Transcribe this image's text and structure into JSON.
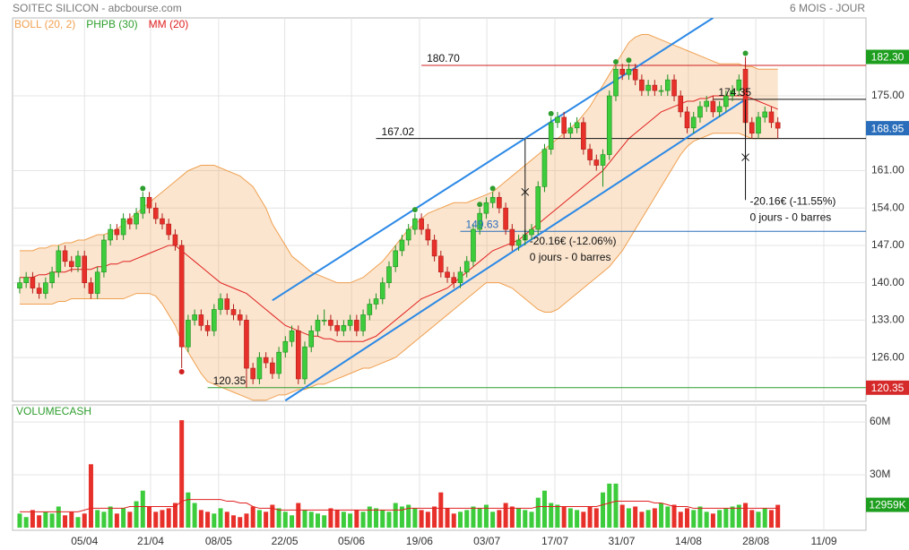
{
  "chart_data": {
    "type": "candlestick",
    "title": "SOITEC SILICON - abcbourse.com",
    "period": "6 MOIS - JOUR",
    "legend": [
      {
        "name": "BOLL (20, 2)",
        "color": "#f0a050"
      },
      {
        "name": "PHPB (30)",
        "color": "#2e9e2e"
      },
      {
        "name": "MM (20)",
        "color": "#e02020"
      }
    ],
    "volume_title": "VOLUMECASH",
    "xlim": [
      -1.1,
      130.6
    ],
    "xticks": [
      {
        "value": 10,
        "label": "05/04"
      },
      {
        "value": 20.2,
        "label": "21/04"
      },
      {
        "value": 30.7,
        "label": "08/05"
      },
      {
        "value": 40.9,
        "label": "22/05"
      },
      {
        "value": 51.2,
        "label": "05/06"
      },
      {
        "value": 61.7,
        "label": "19/06"
      },
      {
        "value": 72.1,
        "label": "03/07"
      },
      {
        "value": 82.6,
        "label": "17/07"
      },
      {
        "value": 92.9,
        "label": "31/07"
      },
      {
        "value": 103.2,
        "label": "14/08"
      },
      {
        "value": 113.6,
        "label": "28/08"
      },
      {
        "value": 124.1,
        "label": "11/09"
      }
    ],
    "ylim": [
      117.8,
      189.6
    ],
    "yticks": [
      {
        "value": 126,
        "label": "126.00"
      },
      {
        "value": 133,
        "label": "133.00"
      },
      {
        "value": 140,
        "label": "140.00"
      },
      {
        "value": 147,
        "label": "147.00"
      },
      {
        "value": 154,
        "label": "154.00"
      },
      {
        "value": 161,
        "label": "161.00"
      },
      {
        "value": 175,
        "label": "175.00"
      }
    ],
    "grid": true,
    "ohlc": [
      [
        139,
        141,
        138,
        140
      ],
      [
        140,
        142,
        139,
        141
      ],
      [
        141,
        142,
        138,
        139
      ],
      [
        139,
        140,
        137,
        138
      ],
      [
        138,
        141,
        137,
        140
      ],
      [
        140,
        143,
        139,
        142
      ],
      [
        142,
        147,
        141,
        146
      ],
      [
        146,
        147,
        143,
        144
      ],
      [
        144,
        145,
        142,
        143
      ],
      [
        143,
        146,
        142,
        145
      ],
      [
        145,
        146,
        139,
        140
      ],
      [
        140,
        141,
        137,
        138
      ],
      [
        138,
        143,
        137,
        142
      ],
      [
        142,
        149,
        141,
        148
      ],
      [
        148,
        151,
        147,
        150
      ],
      [
        150,
        151,
        148,
        149
      ],
      [
        149,
        153,
        148,
        152
      ],
      [
        152,
        153,
        150,
        151
      ],
      [
        151,
        154,
        150,
        153
      ],
      [
        153,
        157,
        152,
        156
      ],
      [
        156,
        157,
        153,
        154
      ],
      [
        154,
        155,
        151,
        152
      ],
      [
        152,
        153,
        150,
        151
      ],
      [
        151,
        152,
        148,
        149
      ],
      [
        149,
        150,
        146,
        147
      ],
      [
        147,
        148,
        124,
        128
      ],
      [
        128,
        134,
        127,
        133
      ],
      [
        133,
        135,
        132,
        134
      ],
      [
        134,
        135,
        131,
        132
      ],
      [
        132,
        133,
        130,
        131
      ],
      [
        131,
        136,
        130,
        135
      ],
      [
        135,
        138,
        134,
        137
      ],
      [
        137,
        138,
        134,
        135
      ],
      [
        135,
        136,
        133,
        134
      ],
      [
        134,
        135,
        132,
        133
      ],
      [
        133,
        134,
        120.35,
        124
      ],
      [
        124,
        125,
        121,
        122
      ],
      [
        122,
        127,
        121,
        126
      ],
      [
        126,
        127,
        124,
        125
      ],
      [
        125,
        126,
        122,
        123
      ],
      [
        123,
        128,
        122,
        127
      ],
      [
        127,
        130,
        126,
        129
      ],
      [
        129,
        132,
        128,
        131
      ],
      [
        131,
        132,
        121,
        122
      ],
      [
        122,
        129,
        121,
        128
      ],
      [
        128,
        132,
        127,
        131
      ],
      [
        131,
        134,
        130,
        133
      ],
      [
        133,
        135,
        132,
        133
      ],
      [
        133,
        134,
        131,
        132
      ],
      [
        132,
        133,
        130,
        131
      ],
      [
        131,
        133,
        130,
        132
      ],
      [
        132,
        134,
        131,
        133
      ],
      [
        133,
        134,
        130,
        131
      ],
      [
        131,
        135,
        130,
        134
      ],
      [
        134,
        137,
        133,
        136
      ],
      [
        136,
        138,
        135,
        137
      ],
      [
        137,
        141,
        136,
        140
      ],
      [
        140,
        144,
        139,
        143
      ],
      [
        143,
        147,
        142,
        146
      ],
      [
        146,
        149,
        145,
        148
      ],
      [
        148,
        151,
        147,
        150
      ],
      [
        150,
        153,
        149,
        152
      ],
      [
        152,
        153,
        149,
        150
      ],
      [
        150,
        151,
        147,
        148
      ],
      [
        148,
        149,
        144,
        145
      ],
      [
        145,
        146,
        141,
        142
      ],
      [
        142,
        143,
        140,
        141
      ],
      [
        141,
        142,
        139,
        140
      ],
      [
        140,
        143,
        139,
        142
      ],
      [
        142,
        145,
        141,
        144
      ],
      [
        144,
        151,
        143,
        150
      ],
      [
        150,
        154,
        149,
        153
      ],
      [
        153,
        156,
        152,
        155
      ],
      [
        155,
        157,
        154,
        156
      ],
      [
        156,
        157,
        153,
        154
      ],
      [
        154,
        155,
        149,
        150
      ],
      [
        150,
        151,
        146,
        147
      ],
      [
        147,
        149,
        146,
        148
      ],
      [
        148,
        150,
        147,
        149
      ],
      [
        149,
        151,
        148,
        150
      ],
      [
        150,
        159,
        149,
        158
      ],
      [
        158,
        166,
        157,
        165
      ],
      [
        165,
        171,
        164,
        170
      ],
      [
        170,
        172,
        169,
        171
      ],
      [
        171,
        172,
        167,
        168
      ],
      [
        168,
        170,
        167,
        169
      ],
      [
        169,
        171,
        168,
        170
      ],
      [
        170,
        171,
        164,
        165
      ],
      [
        165,
        166,
        162,
        163
      ],
      [
        163,
        164,
        161,
        162
      ],
      [
        162,
        165,
        158,
        164
      ],
      [
        164,
        176,
        163,
        175
      ],
      [
        175,
        180.7,
        174,
        180
      ],
      [
        180,
        181,
        178,
        179
      ],
      [
        179,
        181,
        178,
        180
      ],
      [
        180,
        181,
        177,
        178
      ],
      [
        178,
        179,
        175,
        176
      ],
      [
        176,
        178,
        175,
        177
      ],
      [
        177,
        178,
        175,
        176
      ],
      [
        176,
        177,
        175,
        176
      ],
      [
        176,
        179,
        175,
        178
      ],
      [
        178,
        179,
        174,
        175
      ],
      [
        175,
        176,
        171,
        172
      ],
      [
        172,
        173,
        168,
        169
      ],
      [
        169,
        172,
        168,
        171
      ],
      [
        171,
        174,
        170,
        173
      ],
      [
        173,
        175,
        172,
        174
      ],
      [
        174,
        175,
        171,
        172
      ],
      [
        172,
        174,
        171,
        173
      ],
      [
        173,
        176,
        172,
        175
      ],
      [
        175,
        177,
        174,
        176
      ],
      [
        176,
        179,
        175,
        178
      ],
      [
        180,
        182.3,
        167,
        170
      ],
      [
        170,
        171,
        167,
        168
      ],
      [
        168,
        172,
        167,
        171
      ],
      [
        171,
        173,
        170,
        172
      ],
      [
        172,
        173,
        169,
        170
      ],
      [
        170,
        171,
        167,
        168.95
      ]
    ],
    "mm": [
      141,
      141,
      141,
      141.5,
      141.5,
      142,
      142,
      142,
      142.5,
      142.5,
      142.5,
      142.5,
      143,
      143,
      143.5,
      143.5,
      144,
      144,
      144.5,
      145,
      145.5,
      146,
      146.5,
      147,
      147,
      146,
      145,
      144,
      143,
      142,
      141,
      140,
      139.5,
      139,
      138.5,
      138,
      137,
      136,
      135,
      134,
      133,
      132,
      131.5,
      131,
      130.5,
      130,
      130,
      129.5,
      129.5,
      129,
      129,
      129,
      129,
      129,
      129.5,
      130,
      131,
      132,
      133,
      134,
      135,
      136,
      137,
      137.5,
      138,
      138.5,
      139,
      140,
      141,
      142,
      143,
      144,
      145,
      146,
      146.5,
      147,
      147.5,
      148,
      149,
      150,
      151,
      152,
      153,
      154,
      155,
      156,
      157,
      158,
      159,
      160,
      161,
      162.5,
      164,
      165.5,
      167,
      168,
      169,
      170,
      171,
      172,
      172.5,
      173,
      173.5,
      174,
      174,
      174.5,
      174.5,
      175,
      175,
      175,
      175,
      175,
      175,
      174.5,
      174,
      173.5,
      173,
      172.5
    ],
    "boll_upper": [
      146,
      146,
      146,
      146.5,
      146.5,
      147,
      147,
      147.5,
      147.5,
      148,
      148,
      148.5,
      149,
      149,
      149.5,
      150,
      151,
      152,
      153,
      154,
      155,
      156,
      157,
      158,
      159,
      160,
      161,
      161.5,
      162,
      162,
      162,
      161.5,
      161,
      160.5,
      160,
      159,
      158,
      156,
      154,
      151,
      149,
      147,
      145,
      144,
      143,
      142,
      141.5,
      141,
      140.5,
      140,
      140,
      140,
      140.5,
      141,
      142,
      143,
      144,
      145.5,
      147,
      148.5,
      150,
      151,
      152,
      153,
      153.5,
      154,
      154.5,
      155,
      155,
      155,
      155.5,
      156,
      156.5,
      157,
      158,
      159,
      160,
      161,
      162,
      163,
      164,
      165,
      166,
      167,
      168,
      169,
      170,
      171.5,
      173,
      175,
      177,
      179,
      181,
      183,
      185,
      186,
      186.5,
      186.5,
      186,
      185.5,
      185,
      184.5,
      184,
      183.5,
      183,
      182.5,
      182,
      181.5,
      181,
      181,
      181,
      181,
      180.5,
      180.5,
      180,
      180,
      180,
      180
    ],
    "boll_lower": [
      136,
      136,
      136,
      136,
      136,
      136,
      136.5,
      136.5,
      137,
      137,
      137,
      137,
      137,
      137,
      137,
      137,
      137,
      137.5,
      138,
      138,
      138,
      137.5,
      136,
      134,
      132,
      129,
      127,
      125,
      123,
      121.5,
      121,
      120.5,
      120,
      119.5,
      119,
      118.5,
      118,
      118,
      118,
      118.5,
      119,
      119,
      119.5,
      120,
      120,
      120.5,
      121,
      121,
      121.5,
      122,
      122.5,
      123,
      123.5,
      124,
      124,
      124.5,
      125,
      125.5,
      126,
      127,
      128,
      129,
      130,
      131,
      132,
      133,
      134,
      135,
      136,
      137,
      138,
      139,
      140,
      140,
      140,
      139.5,
      139,
      138,
      137,
      136,
      135,
      134.5,
      134.5,
      135,
      136,
      137,
      138,
      139,
      140,
      141,
      142,
      143,
      144.5,
      146,
      148,
      150,
      152,
      154,
      156,
      158,
      160,
      162,
      164,
      165.5,
      166.5,
      167,
      167.5,
      168,
      168,
      168,
      168,
      168,
      167.5,
      167,
      167,
      167,
      167,
      167
    ],
    "pivots": [
      {
        "index": 19,
        "price": 157,
        "color": "#2e9e2e"
      },
      {
        "index": 61,
        "price": 153,
        "color": "#2e9e2e"
      },
      {
        "index": 71,
        "price": 154,
        "color": "#2e9e2e"
      },
      {
        "index": 73,
        "price": 157,
        "color": "#2e9e2e"
      },
      {
        "index": 82,
        "price": 171,
        "color": "#2e9e2e"
      },
      {
        "index": 92,
        "price": 180.7,
        "color": "#2e9e2e"
      },
      {
        "index": 94,
        "price": 181,
        "color": "#2e9e2e"
      },
      {
        "index": 112,
        "price": 182.3,
        "color": "#2e9e2e"
      },
      {
        "index": 25,
        "price": 124,
        "color": "#d02020"
      }
    ],
    "levels": [
      {
        "value": 180.7,
        "label": "180.70",
        "from": 62,
        "color": "#d02020"
      },
      {
        "value": 167.02,
        "label": "167.02",
        "from": 55,
        "color": "#111111"
      },
      {
        "value": 174.35,
        "label": "174.35",
        "from": 107,
        "color": "#111111"
      },
      {
        "value": 149.63,
        "label": "149.63",
        "from": 68,
        "color": "#2a6ebb"
      },
      {
        "value": 120.35,
        "label": "120.35",
        "from": 29,
        "color": "#2e9e2e"
      }
    ],
    "channels": [
      {
        "from": [
          39,
          136.7
        ],
        "to": [
          107,
          189.6
        ],
        "color": "#2a88e6"
      },
      {
        "from": [
          41,
          117.95
        ],
        "to": [
          112,
          174.35
        ],
        "color": "#2a88e6"
      }
    ],
    "measures": [
      {
        "index": 78,
        "from": 167.02,
        "to": 148,
        "cross": 157,
        "text": "-20.16€ (-12.06%)",
        "sub": "0 jours - 0 barres"
      },
      {
        "index": 112,
        "from": 174.35,
        "to": 155.5,
        "cross": 163.5,
        "text": "-20.16€ (-11.55%)",
        "sub": "0 jours - 0 barres"
      }
    ],
    "price_tags": [
      {
        "value": 182.3,
        "label": "182.30",
        "color": "#1e9e1e"
      },
      {
        "value": 168.95,
        "label": "168.95",
        "color": "#2a6ebb"
      },
      {
        "value": 120.35,
        "label": "120.35",
        "color": "#d62a2a"
      }
    ],
    "volume_ylim": [
      -1.5,
      69.7
    ],
    "volume_ticks": [
      {
        "value": 30,
        "label": "30M"
      },
      {
        "value": 60,
        "label": "60M"
      }
    ],
    "volume": [
      8,
      6,
      10,
      7,
      9,
      8,
      12,
      7,
      9,
      6,
      8,
      36,
      10,
      9,
      12,
      8,
      11,
      9,
      15,
      21,
      12,
      9,
      10,
      11,
      14,
      61,
      20,
      14,
      10,
      9,
      8,
      11,
      9,
      7,
      6,
      8,
      12,
      10,
      9,
      13,
      11,
      9,
      7,
      14,
      10,
      9,
      8,
      7,
      11,
      10,
      9,
      8,
      10,
      9,
      12,
      11,
      10,
      9,
      14,
      12,
      13,
      11,
      10,
      9,
      12,
      20,
      11,
      8,
      9,
      10,
      12,
      11,
      13,
      9,
      10,
      14,
      12,
      11,
      10,
      9,
      17,
      21,
      14,
      13,
      12,
      11,
      10,
      9,
      12,
      11,
      20,
      25,
      25,
      13,
      11,
      12,
      9,
      10,
      11,
      14,
      12,
      13,
      9,
      11,
      10,
      12,
      9,
      8,
      10,
      11,
      12,
      13,
      14,
      10,
      9,
      11,
      10,
      12.959
    ],
    "volume_ma": [
      9,
      9,
      9,
      9,
      9,
      9,
      9,
      9,
      9,
      9,
      10,
      11,
      11,
      11,
      11,
      11,
      11,
      12,
      12,
      12,
      12,
      12,
      12,
      12,
      12,
      15,
      16,
      16,
      16,
      16,
      16,
      16,
      15,
      15,
      14,
      14,
      12,
      11,
      11,
      11,
      10,
      10,
      10,
      10,
      10,
      10,
      10,
      10,
      10,
      10,
      10,
      10,
      10,
      10,
      10,
      10,
      10,
      10,
      10,
      10,
      11,
      11,
      11,
      11,
      11,
      11,
      11,
      11,
      11,
      11,
      11,
      11,
      11,
      11,
      11,
      11,
      11,
      11,
      11,
      11,
      12,
      12,
      12,
      12,
      12,
      12,
      12,
      12,
      12,
      12,
      13,
      14,
      15,
      15,
      15,
      15,
      15,
      15,
      14,
      14,
      13,
      12,
      12,
      12,
      11,
      11,
      11,
      11,
      11,
      11,
      11,
      11,
      11,
      11,
      11,
      11,
      11,
      11
    ],
    "volume_tag": {
      "value": 12.959,
      "label": "12959K",
      "color": "#1e9e1e"
    }
  }
}
